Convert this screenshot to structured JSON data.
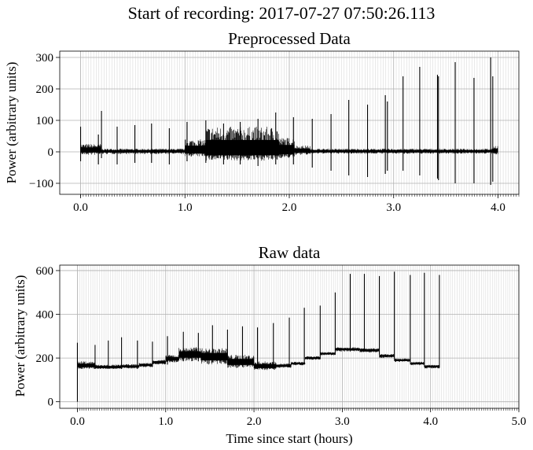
{
  "figure": {
    "suptitle": "Start of recording: 2017-07-27 07:50:26.113"
  },
  "chart_data": [
    {
      "type": "line",
      "title": "Preprocessed Data",
      "xlabel": "",
      "ylabel": "Power (arbitrary units)",
      "xlim": [
        -0.2,
        4.2
      ],
      "ylim": [
        -135,
        320
      ],
      "xticks": [
        0.0,
        1.0,
        2.0,
        3.0,
        4.0
      ],
      "xtick_labels": [
        "0.0",
        "1.0",
        "2.0",
        "3.0",
        "4.0"
      ],
      "yticks": [
        -100,
        0,
        100,
        200,
        300
      ],
      "ytick_labels": [
        "−100",
        "0",
        "100",
        "200",
        "300"
      ],
      "grid": true,
      "series": [
        {
          "color": "#000000",
          "segments": [
            {
              "x0": 0.0,
              "x1": 0.2,
              "center": 5,
              "low": -10,
              "high": 25
            },
            {
              "x0": 0.2,
              "x1": 1.0,
              "center": 2,
              "low": -7,
              "high": 10
            },
            {
              "x0": 1.0,
              "x1": 1.2,
              "center": 3,
              "low": -15,
              "high": 40
            },
            {
              "x0": 1.2,
              "x1": 1.9,
              "center": 3,
              "low": -28,
              "high": 80
            },
            {
              "x0": 1.9,
              "x1": 2.05,
              "center": 3,
              "low": -20,
              "high": 45
            },
            {
              "x0": 2.05,
              "x1": 2.2,
              "center": 3,
              "low": -10,
              "high": 20
            },
            {
              "x0": 2.2,
              "x1": 3.95,
              "center": 2,
              "low": -6,
              "high": 10
            },
            {
              "x0": 3.95,
              "x1": 4.0,
              "center": 3,
              "low": -10,
              "high": 20
            }
          ],
          "spikes": [
            {
              "x": 0.0,
              "low": -30,
              "high": 80
            },
            {
              "x": 0.17,
              "low": -40,
              "high": 55
            },
            {
              "x": 0.2,
              "low": -20,
              "high": 130
            },
            {
              "x": 0.35,
              "low": -40,
              "high": 80
            },
            {
              "x": 0.52,
              "low": -35,
              "high": 85
            },
            {
              "x": 0.68,
              "low": -35,
              "high": 90
            },
            {
              "x": 0.85,
              "low": -40,
              "high": 75
            },
            {
              "x": 1.02,
              "low": -30,
              "high": 95
            },
            {
              "x": 1.2,
              "low": -35,
              "high": 100
            },
            {
              "x": 1.37,
              "low": -40,
              "high": 90
            },
            {
              "x": 1.53,
              "low": -40,
              "high": 95
            },
            {
              "x": 1.7,
              "low": -45,
              "high": 105
            },
            {
              "x": 1.87,
              "low": -40,
              "high": 125
            },
            {
              "x": 2.04,
              "low": -40,
              "high": 110
            },
            {
              "x": 2.22,
              "low": -50,
              "high": 105
            },
            {
              "x": 2.4,
              "low": -60,
              "high": 120
            },
            {
              "x": 2.57,
              "low": -75,
              "high": 165
            },
            {
              "x": 2.75,
              "low": -80,
              "high": 150
            },
            {
              "x": 2.92,
              "low": -70,
              "high": 180
            },
            {
              "x": 2.94,
              "low": -60,
              "high": 160
            },
            {
              "x": 3.09,
              "low": -60,
              "high": 240
            },
            {
              "x": 3.25,
              "low": -75,
              "high": 270
            },
            {
              "x": 3.42,
              "low": -85,
              "high": 245
            },
            {
              "x": 3.43,
              "low": -90,
              "high": 240
            },
            {
              "x": 3.59,
              "low": -100,
              "high": 285
            },
            {
              "x": 3.77,
              "low": -100,
              "high": 235
            },
            {
              "x": 3.93,
              "low": -105,
              "high": 300
            },
            {
              "x": 3.95,
              "low": -95,
              "high": 240
            }
          ]
        }
      ]
    },
    {
      "type": "line",
      "title": "Raw data",
      "xlabel": "Time since start (hours)",
      "ylabel": "Power (arbitrary units)",
      "xlim": [
        -0.2,
        5.0
      ],
      "ylim": [
        -30,
        625
      ],
      "xticks": [
        0.0,
        1.0,
        2.0,
        3.0,
        4.0,
        5.0
      ],
      "xtick_labels": [
        "0.0",
        "1.0",
        "2.0",
        "3.0",
        "4.0",
        "5.0"
      ],
      "yticks": [
        0,
        200,
        400,
        600
      ],
      "ytick_labels": [
        "0",
        "200",
        "400",
        "600"
      ],
      "grid": true,
      "series": [
        {
          "color": "#000000",
          "segments": [
            {
              "x0": 0.0,
              "x1": 0.2,
              "center": 165,
              "low": 150,
              "high": 185
            },
            {
              "x0": 0.2,
              "x1": 0.5,
              "center": 158,
              "low": 150,
              "high": 170
            },
            {
              "x0": 0.5,
              "x1": 0.7,
              "center": 162,
              "low": 152,
              "high": 172
            },
            {
              "x0": 0.7,
              "x1": 0.85,
              "center": 168,
              "low": 158,
              "high": 178
            },
            {
              "x0": 0.85,
              "x1": 1.0,
              "center": 180,
              "low": 170,
              "high": 192
            },
            {
              "x0": 1.0,
              "x1": 1.15,
              "center": 195,
              "low": 180,
              "high": 215
            },
            {
              "x0": 1.15,
              "x1": 1.4,
              "center": 215,
              "low": 185,
              "high": 250
            },
            {
              "x0": 1.4,
              "x1": 1.7,
              "center": 205,
              "low": 170,
              "high": 245
            },
            {
              "x0": 1.7,
              "x1": 2.0,
              "center": 180,
              "low": 155,
              "high": 215
            },
            {
              "x0": 2.0,
              "x1": 2.25,
              "center": 162,
              "low": 145,
              "high": 185
            },
            {
              "x0": 2.25,
              "x1": 2.42,
              "center": 165,
              "low": 155,
              "high": 175
            },
            {
              "x0": 2.42,
              "x1": 2.58,
              "center": 175,
              "low": 167,
              "high": 183
            },
            {
              "x0": 2.58,
              "x1": 2.75,
              "center": 200,
              "low": 192,
              "high": 208
            },
            {
              "x0": 2.75,
              "x1": 2.92,
              "center": 220,
              "low": 212,
              "high": 228
            },
            {
              "x0": 2.92,
              "x1": 3.2,
              "center": 240,
              "low": 230,
              "high": 250
            },
            {
              "x0": 3.2,
              "x1": 3.42,
              "center": 235,
              "low": 225,
              "high": 245
            },
            {
              "x0": 3.42,
              "x1": 3.59,
              "center": 210,
              "low": 200,
              "high": 218
            },
            {
              "x0": 3.59,
              "x1": 3.77,
              "center": 190,
              "low": 182,
              "high": 198
            },
            {
              "x0": 3.77,
              "x1": 3.93,
              "center": 175,
              "low": 167,
              "high": 183
            },
            {
              "x0": 3.93,
              "x1": 4.1,
              "center": 162,
              "low": 152,
              "high": 170
            }
          ],
          "spikes": [
            {
              "x": 0.0,
              "low": 0,
              "high": 270
            },
            {
              "x": 0.2,
              "low": 150,
              "high": 260
            },
            {
              "x": 0.35,
              "low": 150,
              "high": 280
            },
            {
              "x": 0.5,
              "low": 150,
              "high": 295
            },
            {
              "x": 0.68,
              "low": 150,
              "high": 280
            },
            {
              "x": 0.85,
              "low": 160,
              "high": 275
            },
            {
              "x": 1.02,
              "low": 170,
              "high": 300
            },
            {
              "x": 1.2,
              "low": 185,
              "high": 320
            },
            {
              "x": 1.37,
              "low": 185,
              "high": 315
            },
            {
              "x": 1.53,
              "low": 180,
              "high": 350
            },
            {
              "x": 1.7,
              "low": 170,
              "high": 330
            },
            {
              "x": 1.87,
              "low": 160,
              "high": 345
            },
            {
              "x": 2.04,
              "low": 150,
              "high": 340
            },
            {
              "x": 2.22,
              "low": 150,
              "high": 360
            },
            {
              "x": 2.4,
              "low": 160,
              "high": 385
            },
            {
              "x": 2.57,
              "low": 170,
              "high": 430
            },
            {
              "x": 2.75,
              "low": 195,
              "high": 440
            },
            {
              "x": 2.92,
              "low": 215,
              "high": 500
            },
            {
              "x": 3.09,
              "low": 230,
              "high": 585
            },
            {
              "x": 3.25,
              "low": 230,
              "high": 585
            },
            {
              "x": 3.42,
              "low": 215,
              "high": 575
            },
            {
              "x": 3.59,
              "low": 195,
              "high": 595
            },
            {
              "x": 3.77,
              "low": 180,
              "high": 580
            },
            {
              "x": 3.93,
              "low": 165,
              "high": 590
            },
            {
              "x": 4.1,
              "low": 155,
              "high": 580
            }
          ]
        }
      ]
    }
  ]
}
